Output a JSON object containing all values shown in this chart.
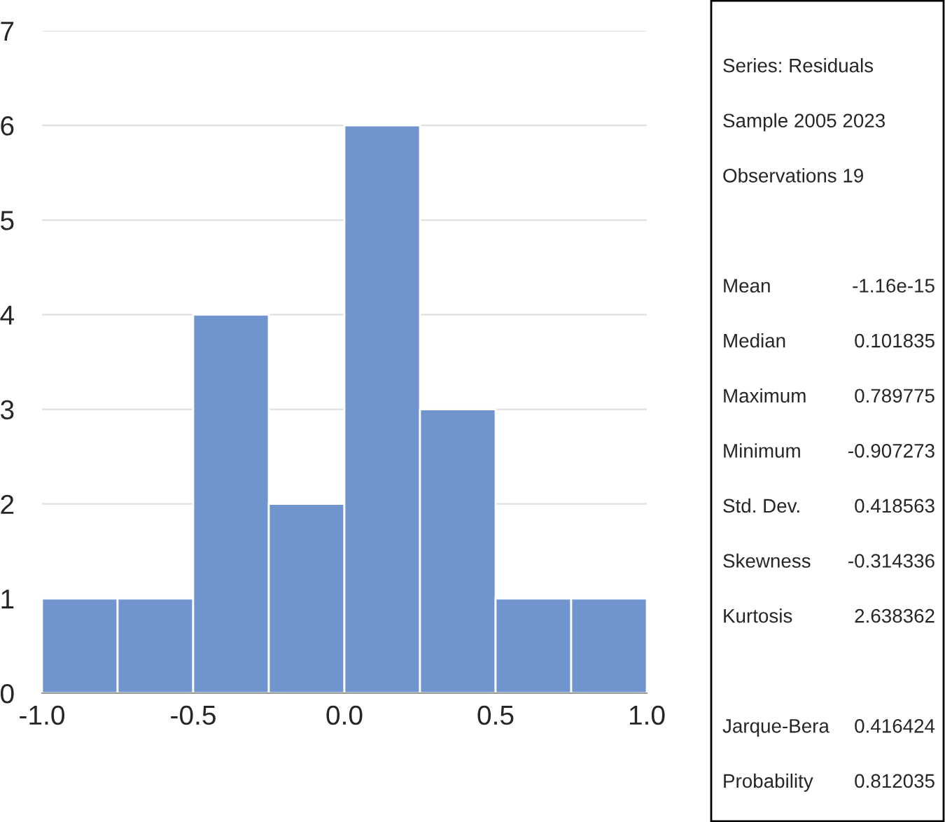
{
  "chart_data": [
    {
      "type": "histogram",
      "bins": [
        -1.0,
        -0.75,
        -0.5,
        -0.25,
        0.0,
        0.25,
        0.5,
        0.75,
        1.0
      ],
      "values": [
        1,
        1,
        4,
        2,
        6,
        3,
        1,
        1
      ],
      "color": "#7094cd",
      "xlim": [
        -1.0,
        1.0
      ],
      "xticks": [
        {
          "value": -1.0,
          "label": "-1.0"
        },
        {
          "value": -0.5,
          "label": "-0.5"
        },
        {
          "value": 0.0,
          "label": "0.0"
        },
        {
          "value": 0.5,
          "label": "0.5"
        },
        {
          "value": 1.0,
          "label": "1.0"
        }
      ],
      "ylim": [
        0,
        7
      ],
      "yticks": [
        0,
        1,
        2,
        3,
        4,
        5,
        6,
        7
      ],
      "grid": "y"
    },
    {
      "type": "other",
      "annotations": [
        "Series: Residuals",
        "Sample 2005 2023",
        "Observations 19",
        "Mean",
        "-1.16e-15",
        "Median",
        "0.101835",
        "Maximum",
        "0.789775",
        "Minimum",
        "-0.907273",
        "Std. Dev.",
        "0.418563",
        "Skewness",
        "-0.314336",
        "Kurtosis",
        "2.638362",
        "Jarque-Bera",
        "0.416424",
        "Probability",
        "0.812035"
      ]
    }
  ]
}
